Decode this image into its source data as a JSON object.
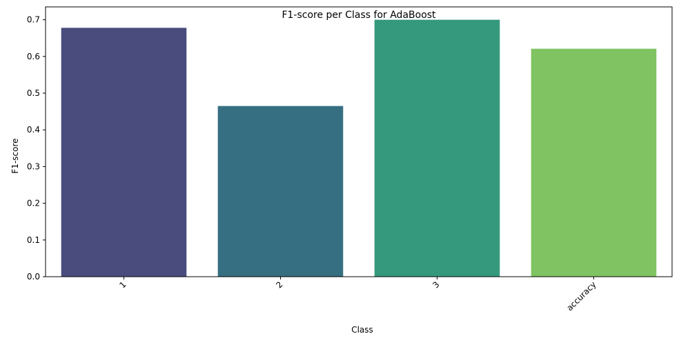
{
  "chart_data": {
    "type": "bar",
    "title": "F1-score per Class for AdaBoost",
    "xlabel": "Class",
    "ylabel": "F1-score",
    "categories": [
      "1",
      "2",
      "3",
      "accuracy"
    ],
    "values": [
      0.678,
      0.465,
      0.7,
      0.621
    ],
    "colors": [
      "#4a4c7e",
      "#366f81",
      "#35997d",
      "#80c362"
    ],
    "ylim": [
      0,
      0.735
    ],
    "yticks": [
      0.0,
      0.1,
      0.2,
      0.3,
      0.4,
      0.5,
      0.6,
      0.7
    ],
    "ytick_labels": [
      "0.0",
      "0.1",
      "0.2",
      "0.3",
      "0.4",
      "0.5",
      "0.6",
      "0.7"
    ],
    "xtick_rotation": 45,
    "grid": false,
    "legend": "none"
  }
}
